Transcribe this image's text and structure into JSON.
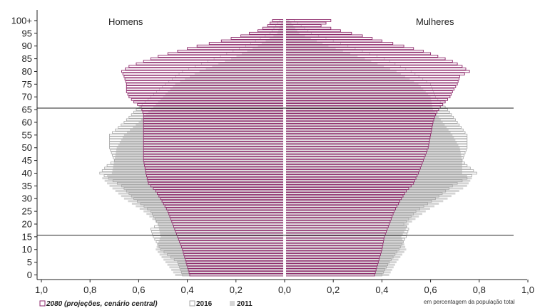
{
  "chart_data": {
    "type": "bar",
    "subtype": "population-pyramid",
    "left_label": "Homens",
    "right_label": "Mulheres",
    "x_ticks": [
      "1,0",
      "0,8",
      "0,6",
      "0,4",
      "0,2",
      "0,0",
      "0,2",
      "0,4",
      "0,6",
      "0,8",
      "1,0"
    ],
    "y_ticks": [
      "0",
      "5",
      "10",
      "15",
      "20",
      "25",
      "30",
      "35",
      "40",
      "45",
      "50",
      "55",
      "60",
      "65",
      "70",
      "75",
      "80",
      "85",
      "90",
      "95",
      "100+"
    ],
    "xlim": [
      -1.0,
      1.0
    ],
    "x_unit_note": "em percentagem da população total",
    "reference_lines_at_age": [
      16,
      66
    ],
    "grid": false,
    "legend_position": "bottom",
    "colors": {
      "s2080": "#8e2a6c",
      "s2080_fill": "#ffffff",
      "s2016": "#a6a6a6",
      "s2011": "#d4d4d4",
      "axis": "#222222",
      "ref_line": "#222222"
    },
    "series": [
      {
        "name": "2080 (projeções, cenário central)",
        "key": "s2080",
        "anchors_men": [
          [
            0,
            0.39
          ],
          [
            10,
            0.42
          ],
          [
            15,
            0.44
          ],
          [
            20,
            0.46
          ],
          [
            25,
            0.48
          ],
          [
            30,
            0.51
          ],
          [
            33,
            0.53
          ],
          [
            36,
            0.56
          ],
          [
            40,
            0.57
          ],
          [
            45,
            0.58
          ],
          [
            50,
            0.58
          ],
          [
            55,
            0.58
          ],
          [
            60,
            0.58
          ],
          [
            63,
            0.58
          ],
          [
            66,
            0.59
          ],
          [
            68,
            0.62
          ],
          [
            70,
            0.64
          ],
          [
            72,
            0.65
          ],
          [
            75,
            0.65
          ],
          [
            78,
            0.66
          ],
          [
            80,
            0.67
          ],
          [
            82,
            0.64
          ],
          [
            84,
            0.58
          ],
          [
            86,
            0.52
          ],
          [
            88,
            0.44
          ],
          [
            90,
            0.36
          ],
          [
            92,
            0.26
          ],
          [
            94,
            0.18
          ],
          [
            96,
            0.11
          ],
          [
            98,
            0.07
          ],
          [
            100,
            0.05
          ]
        ],
        "anchors_women": [
          [
            0,
            0.37
          ],
          [
            10,
            0.4
          ],
          [
            15,
            0.41
          ],
          [
            20,
            0.43
          ],
          [
            25,
            0.45
          ],
          [
            30,
            0.48
          ],
          [
            33,
            0.5
          ],
          [
            36,
            0.53
          ],
          [
            40,
            0.55
          ],
          [
            45,
            0.57
          ],
          [
            50,
            0.59
          ],
          [
            55,
            0.6
          ],
          [
            60,
            0.61
          ],
          [
            63,
            0.62
          ],
          [
            66,
            0.64
          ],
          [
            68,
            0.66
          ],
          [
            70,
            0.68
          ],
          [
            72,
            0.69
          ],
          [
            75,
            0.71
          ],
          [
            78,
            0.72
          ],
          [
            80,
            0.76
          ],
          [
            82,
            0.73
          ],
          [
            84,
            0.69
          ],
          [
            86,
            0.63
          ],
          [
            88,
            0.57
          ],
          [
            90,
            0.49
          ],
          [
            92,
            0.4
          ],
          [
            94,
            0.32
          ],
          [
            96,
            0.23
          ],
          [
            98,
            0.15
          ],
          [
            100,
            0.19
          ]
        ]
      },
      {
        "name": "2016",
        "key": "s2016",
        "anchors_men": [
          [
            0,
            0.42
          ],
          [
            5,
            0.44
          ],
          [
            10,
            0.51
          ],
          [
            15,
            0.54
          ],
          [
            18,
            0.55
          ],
          [
            20,
            0.52
          ],
          [
            25,
            0.55
          ],
          [
            30,
            0.62
          ],
          [
            35,
            0.67
          ],
          [
            40,
            0.76
          ],
          [
            43,
            0.73
          ],
          [
            45,
            0.7
          ],
          [
            50,
            0.72
          ],
          [
            55,
            0.72
          ],
          [
            60,
            0.66
          ],
          [
            65,
            0.61
          ],
          [
            70,
            0.55
          ],
          [
            75,
            0.49
          ],
          [
            80,
            0.42
          ],
          [
            85,
            0.29
          ],
          [
            90,
            0.16
          ],
          [
            95,
            0.06
          ],
          [
            100,
            0.02
          ]
        ],
        "anchors_women": [
          [
            0,
            0.4
          ],
          [
            5,
            0.43
          ],
          [
            10,
            0.47
          ],
          [
            15,
            0.5
          ],
          [
            18,
            0.51
          ],
          [
            20,
            0.49
          ],
          [
            25,
            0.54
          ],
          [
            30,
            0.62
          ],
          [
            35,
            0.69
          ],
          [
            40,
            0.79
          ],
          [
            43,
            0.75
          ],
          [
            45,
            0.73
          ],
          [
            50,
            0.75
          ],
          [
            55,
            0.75
          ],
          [
            60,
            0.71
          ],
          [
            65,
            0.67
          ],
          [
            70,
            0.62
          ],
          [
            75,
            0.6
          ],
          [
            80,
            0.52
          ],
          [
            85,
            0.41
          ],
          [
            90,
            0.26
          ],
          [
            95,
            0.11
          ],
          [
            100,
            0.04
          ]
        ]
      },
      {
        "name": "2011",
        "key": "s2011",
        "anchors_men": [
          [
            0,
            0.45
          ],
          [
            5,
            0.49
          ],
          [
            10,
            0.53
          ],
          [
            15,
            0.51
          ],
          [
            20,
            0.52
          ],
          [
            25,
            0.58
          ],
          [
            30,
            0.66
          ],
          [
            35,
            0.72
          ],
          [
            38,
            0.75
          ],
          [
            40,
            0.71
          ],
          [
            45,
            0.7
          ],
          [
            50,
            0.69
          ],
          [
            55,
            0.66
          ],
          [
            60,
            0.6
          ],
          [
            65,
            0.55
          ],
          [
            70,
            0.5
          ],
          [
            75,
            0.45
          ],
          [
            80,
            0.35
          ],
          [
            85,
            0.22
          ],
          [
            90,
            0.11
          ],
          [
            95,
            0.03
          ],
          [
            100,
            0.01
          ]
        ],
        "anchors_women": [
          [
            0,
            0.43
          ],
          [
            5,
            0.46
          ],
          [
            10,
            0.5
          ],
          [
            15,
            0.48
          ],
          [
            20,
            0.51
          ],
          [
            25,
            0.58
          ],
          [
            30,
            0.67
          ],
          [
            35,
            0.75
          ],
          [
            38,
            0.77
          ],
          [
            40,
            0.73
          ],
          [
            45,
            0.73
          ],
          [
            50,
            0.72
          ],
          [
            55,
            0.69
          ],
          [
            60,
            0.65
          ],
          [
            65,
            0.61
          ],
          [
            70,
            0.6
          ],
          [
            75,
            0.55
          ],
          [
            80,
            0.46
          ],
          [
            85,
            0.33
          ],
          [
            90,
            0.18
          ],
          [
            95,
            0.06
          ],
          [
            100,
            0.02
          ]
        ]
      }
    ]
  }
}
